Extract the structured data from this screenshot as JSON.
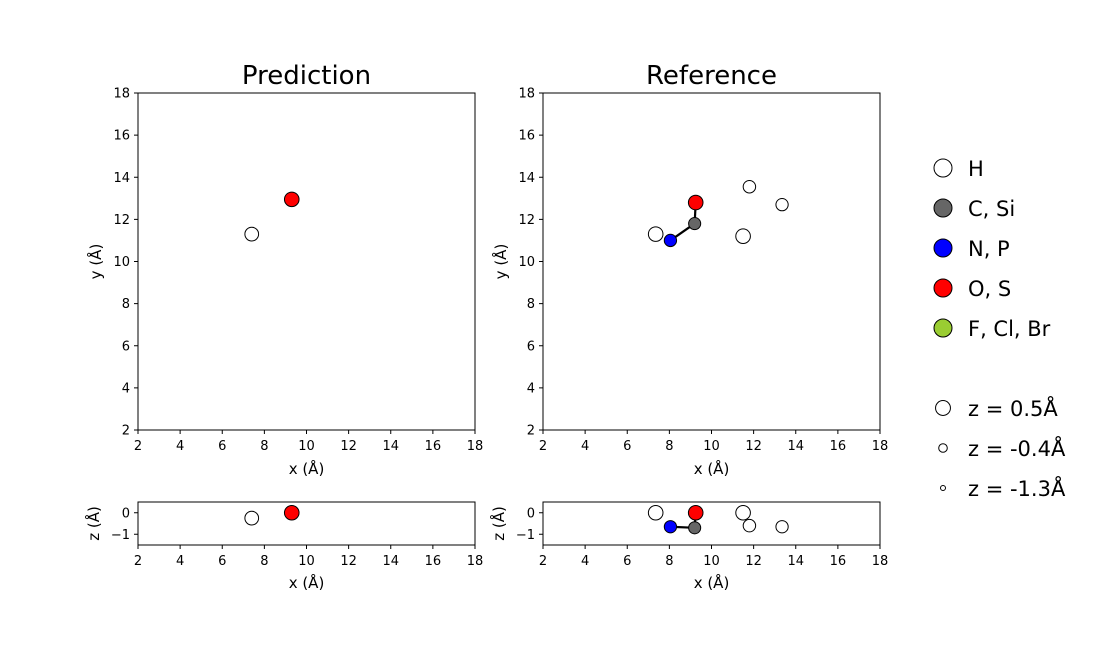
{
  "colors": {
    "H": "#ffffff",
    "C, Si": "#666666",
    "N, P": "#0000ff",
    "O, S": "#ff0000",
    "F, Cl, Br": "#9acd32"
  },
  "chart_data": [
    {
      "type": "scatter",
      "title": "Prediction",
      "xlabel": "x (Å)",
      "ylabel": "y (Å)",
      "zlabel": "z (Å)",
      "xlim": [
        2,
        18
      ],
      "ylim": [
        2,
        18
      ],
      "zlim": [
        -1.5,
        0.5
      ],
      "xticks": [
        "2",
        "4",
        "6",
        "8",
        "10",
        "12",
        "14",
        "16",
        "18"
      ],
      "yticks": [
        "2",
        "4",
        "6",
        "8",
        "10",
        "12",
        "14",
        "16",
        "18"
      ],
      "zticks": [
        "0",
        "−1"
      ],
      "atoms": [
        {
          "element": "H",
          "x": 7.4,
          "y": 11.3,
          "z": -0.25
        },
        {
          "element": "O, S",
          "x": 9.3,
          "y": 12.95,
          "z": 0.0
        }
      ],
      "bonds": []
    },
    {
      "type": "scatter",
      "title": "Reference",
      "xlabel": "x (Å)",
      "ylabel": "y (Å)",
      "zlabel": "z (Å)",
      "xlim": [
        2,
        18
      ],
      "ylim": [
        2,
        18
      ],
      "zlim": [
        -1.5,
        0.5
      ],
      "xticks": [
        "2",
        "4",
        "6",
        "8",
        "10",
        "12",
        "14",
        "16",
        "18"
      ],
      "yticks": [
        "2",
        "4",
        "6",
        "8",
        "10",
        "12",
        "14",
        "16",
        "18"
      ],
      "zticks": [
        "0",
        "−1"
      ],
      "atoms": [
        {
          "element": "H",
          "x": 7.35,
          "y": 11.3,
          "z": 0.0
        },
        {
          "element": "N, P",
          "x": 8.05,
          "y": 11.0,
          "z": -0.65
        },
        {
          "element": "C, Si",
          "x": 9.2,
          "y": 11.8,
          "z": -0.7
        },
        {
          "element": "O, S",
          "x": 9.25,
          "y": 12.8,
          "z": 0.0
        },
        {
          "element": "H",
          "x": 11.5,
          "y": 11.2,
          "z": 0.0
        },
        {
          "element": "H",
          "x": 11.8,
          "y": 13.55,
          "z": -0.6
        },
        {
          "element": "H",
          "x": 13.35,
          "y": 12.7,
          "z": -0.65
        }
      ],
      "bonds": [
        [
          1,
          2
        ],
        [
          2,
          3
        ]
      ]
    }
  ],
  "legend": {
    "elements": [
      "H",
      "C, Si",
      "N, P",
      "O, S",
      "F, Cl, Br"
    ],
    "sizes": [
      {
        "label": "z = 0.5Å",
        "z": 0.5
      },
      {
        "label": "z = -0.4Å",
        "z": -0.4
      },
      {
        "label": "z = -1.3Å",
        "z": -1.3
      }
    ]
  }
}
